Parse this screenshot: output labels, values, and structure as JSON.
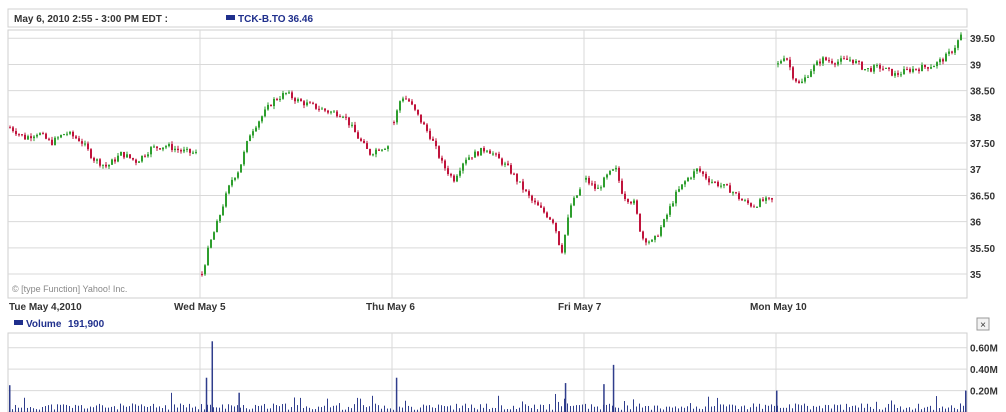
{
  "header": {
    "time_range": "May 6, 2010 2:55 - 3:00 PM EDT :",
    "symbol_label": "TCK-B.TO",
    "symbol_value": "36.46"
  },
  "volume_header": {
    "label": "Volume",
    "value": "191,900",
    "close_glyph": "×"
  },
  "watermark": "© [type Function] Yahoo! Inc.",
  "colors": {
    "up": "#2e9e2e",
    "down": "#c0143c",
    "grid": "#d9d9d9",
    "volume": "#2f3d8c",
    "legend_blue": "#1f2f8c"
  },
  "chart_data": [
    {
      "type": "candlestick",
      "title": "TCK-B.TO",
      "x": [
        "Tue May 4,2010",
        "Wed May 5",
        "Thu May 6",
        "Fri May 7",
        "Mon May 10"
      ],
      "y_ticks": [
        "35",
        "35.50",
        "36",
        "36.50",
        "37",
        "37.50",
        "38",
        "38.50",
        "39",
        "39.50"
      ],
      "ylim": [
        34.6,
        39.6
      ],
      "grid": true,
      "series": [
        {
          "days": [
            {
              "label": "Tue May 4,2010",
              "points": [
                [
                  0,
                  37.8
                ],
                [
                  0.08,
                  37.6
                ],
                [
                  0.15,
                  37.7
                ],
                [
                  0.22,
                  37.5
                ],
                [
                  0.3,
                  37.7
                ],
                [
                  0.38,
                  37.55
                ],
                [
                  0.45,
                  37.2
                ],
                [
                  0.52,
                  37.05
                ],
                [
                  0.6,
                  37.3
                ],
                [
                  0.68,
                  37.15
                ],
                [
                  0.76,
                  37.4
                ],
                [
                  0.84,
                  37.45
                ],
                [
                  0.92,
                  37.35
                ],
                [
                  1,
                  37.3
                ]
              ]
            },
            {
              "label": "Wed May 5",
              "points": [
                [
                  0,
                  35.0
                ],
                [
                  0.04,
                  35.55
                ],
                [
                  0.08,
                  35.95
                ],
                [
                  0.12,
                  36.4
                ],
                [
                  0.16,
                  36.8
                ],
                [
                  0.2,
                  37.0
                ],
                [
                  0.26,
                  37.7
                ],
                [
                  0.32,
                  38.0
                ],
                [
                  0.38,
                  38.3
                ],
                [
                  0.45,
                  38.45
                ],
                [
                  0.52,
                  38.3
                ],
                [
                  0.6,
                  38.2
                ],
                [
                  0.68,
                  38.1
                ],
                [
                  0.76,
                  38.05
                ],
                [
                  0.84,
                  37.6
                ],
                [
                  0.9,
                  37.3
                ],
                [
                  0.95,
                  37.4
                ],
                [
                  1,
                  37.45
                ]
              ]
            },
            {
              "label": "Thu May 6",
              "points": [
                [
                  0,
                  37.9
                ],
                [
                  0.04,
                  38.4
                ],
                [
                  0.08,
                  38.3
                ],
                [
                  0.14,
                  37.95
                ],
                [
                  0.2,
                  37.6
                ],
                [
                  0.26,
                  37.1
                ],
                [
                  0.32,
                  36.8
                ],
                [
                  0.38,
                  37.2
                ],
                [
                  0.44,
                  37.3
                ],
                [
                  0.5,
                  37.4
                ],
                [
                  0.56,
                  37.2
                ],
                [
                  0.62,
                  37.0
                ],
                [
                  0.68,
                  36.7
                ],
                [
                  0.74,
                  36.4
                ],
                [
                  0.8,
                  36.2
                ],
                [
                  0.86,
                  36.0
                ],
                [
                  0.9,
                  35.4
                ],
                [
                  0.95,
                  36.3
                ],
                [
                  1,
                  36.6
                ]
              ]
            },
            {
              "label": "Fri May 7",
              "points": [
                [
                  0,
                  36.8
                ],
                [
                  0.06,
                  36.6
                ],
                [
                  0.12,
                  36.9
                ],
                [
                  0.16,
                  37.0
                ],
                [
                  0.2,
                  36.5
                ],
                [
                  0.26,
                  36.35
                ],
                [
                  0.3,
                  35.7
                ],
                [
                  0.36,
                  35.6
                ],
                [
                  0.42,
                  36.0
                ],
                [
                  0.48,
                  36.5
                ],
                [
                  0.54,
                  36.8
                ],
                [
                  0.6,
                  37.0
                ],
                [
                  0.66,
                  36.8
                ],
                [
                  0.72,
                  36.7
                ],
                [
                  0.78,
                  36.6
                ],
                [
                  0.84,
                  36.4
                ],
                [
                  0.9,
                  36.3
                ],
                [
                  0.95,
                  36.4
                ],
                [
                  1,
                  36.4
                ]
              ]
            },
            {
              "label": "Mon May 10",
              "points": [
                [
                  0,
                  39.0
                ],
                [
                  0.04,
                  39.2
                ],
                [
                  0.08,
                  38.8
                ],
                [
                  0.12,
                  38.6
                ],
                [
                  0.18,
                  38.9
                ],
                [
                  0.24,
                  39.1
                ],
                [
                  0.32,
                  39.05
                ],
                [
                  0.4,
                  39.1
                ],
                [
                  0.48,
                  38.9
                ],
                [
                  0.56,
                  38.95
                ],
                [
                  0.64,
                  38.8
                ],
                [
                  0.72,
                  38.9
                ],
                [
                  0.8,
                  38.95
                ],
                [
                  0.86,
                  39.0
                ],
                [
                  0.92,
                  39.15
                ],
                [
                  0.96,
                  39.3
                ],
                [
                  1,
                  39.55
                ]
              ]
            }
          ]
        }
      ]
    },
    {
      "type": "bar",
      "title": "Volume",
      "y_ticks": [
        "0.20M",
        "0.40M",
        "0.60M"
      ],
      "ylim": [
        0,
        0.7
      ],
      "spikes": [
        {
          "day": 1,
          "pos": 0.06,
          "value": 0.66
        },
        {
          "day": 1,
          "pos": 0.03,
          "value": 0.32
        },
        {
          "day": 1,
          "pos": 0.2,
          "value": 0.18
        },
        {
          "day": 2,
          "pos": 0.02,
          "value": 0.32
        },
        {
          "day": 2,
          "pos": 0.9,
          "value": 0.27
        },
        {
          "day": 3,
          "pos": 0.15,
          "value": 0.44
        },
        {
          "day": 3,
          "pos": 0.1,
          "value": 0.26
        },
        {
          "day": 0,
          "pos": 0.0,
          "value": 0.25
        },
        {
          "day": 4,
          "pos": 0.0,
          "value": 0.2
        },
        {
          "day": 4,
          "pos": 1.0,
          "value": 0.2
        }
      ]
    }
  ]
}
